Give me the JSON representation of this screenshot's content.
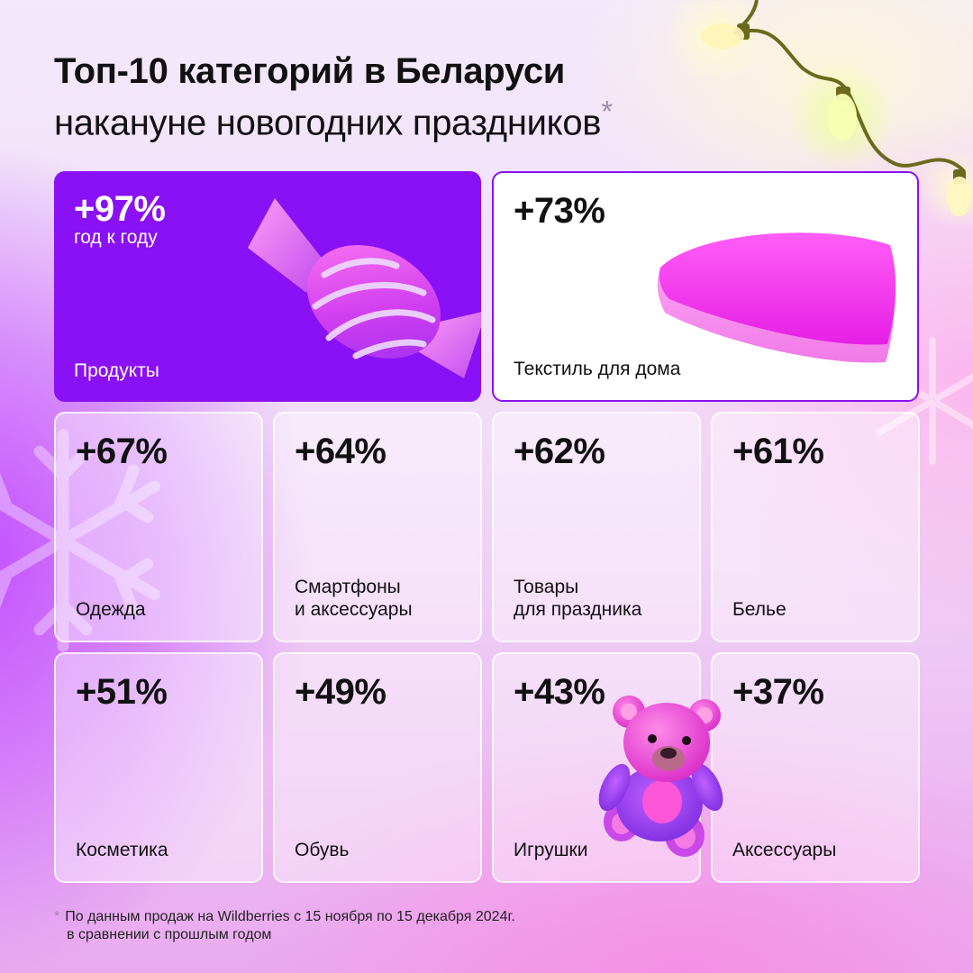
{
  "header": {
    "title_line1": "Топ-10 категорий в Беларуси",
    "title_line2": "накануне новогодних праздников",
    "title_asterisk": "*"
  },
  "cards": [
    {
      "percent": "+97%",
      "subtitle": "год к году",
      "label": "Продукты",
      "style": "purple",
      "icon": "candy-icon"
    },
    {
      "percent": "+73%",
      "label": "Текстиль для дома",
      "style": "white",
      "icon": "pillow-icon"
    },
    {
      "percent": "+67%",
      "label": "Одежда"
    },
    {
      "percent": "+64%",
      "label": "Смартфоны\nи аксессуары"
    },
    {
      "percent": "+62%",
      "label": "Товары\nдля праздника"
    },
    {
      "percent": "+61%",
      "label": "Белье"
    },
    {
      "percent": "+51%",
      "label": "Косметика"
    },
    {
      "percent": "+49%",
      "label": "Обувь"
    },
    {
      "percent": "+43%",
      "label": "Игрушки",
      "icon": "teddy-bear-icon"
    },
    {
      "percent": "+37%",
      "label": "Аксессуары"
    }
  ],
  "footnote": {
    "asterisk": "*",
    "line1": "По данным продаж на Wildberries с 15 ноября по 15 декабря 2024г.",
    "line2": "в сравнении с прошлым годом"
  },
  "colors": {
    "accent_purple": "#8a10f5",
    "candy_pink": "#e04ee0",
    "pillow_magenta": "#f23cf0",
    "bear_pink": "#e83fd0",
    "garland_wire": "#6b6a1c"
  },
  "decorations": [
    "garland-lights-icon",
    "snowflake-icon"
  ]
}
